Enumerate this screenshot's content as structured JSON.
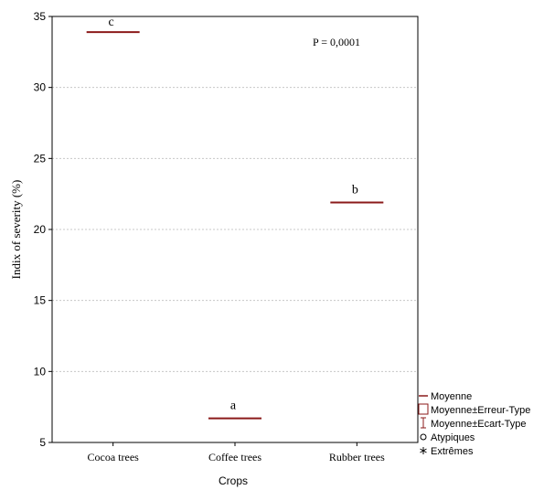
{
  "chart_data": {
    "type": "box",
    "categories": [
      "Cocoa trees",
      "Coffee trees",
      "Rubber trees"
    ],
    "series": [
      {
        "name": "Moyenne",
        "values": [
          33.9,
          6.7,
          21.9
        ]
      }
    ],
    "group_letters": [
      "c",
      "a",
      "b"
    ],
    "annotation": "P = 0,0001",
    "xlabel": "Crops",
    "ylabel": "Indix of severity (%)",
    "ylim": [
      5,
      35
    ],
    "yticks": [
      5,
      10,
      15,
      20,
      25,
      30,
      35
    ],
    "grid": true,
    "legend_position": "bottom-right",
    "legend": [
      {
        "label": "Moyenne",
        "symbol": "line"
      },
      {
        "label": "Moyenne±Erreur-Type",
        "symbol": "box"
      },
      {
        "label": "Moyenne±Ecart-Type",
        "symbol": "whisker"
      },
      {
        "label": "Atypiques",
        "symbol": "circle"
      },
      {
        "label": "Extrêmes",
        "symbol": "asterisk"
      }
    ],
    "colors": {
      "mean_line": "#8b1a1a",
      "axis": "#000000",
      "grid": "#c8c8c8"
    }
  }
}
